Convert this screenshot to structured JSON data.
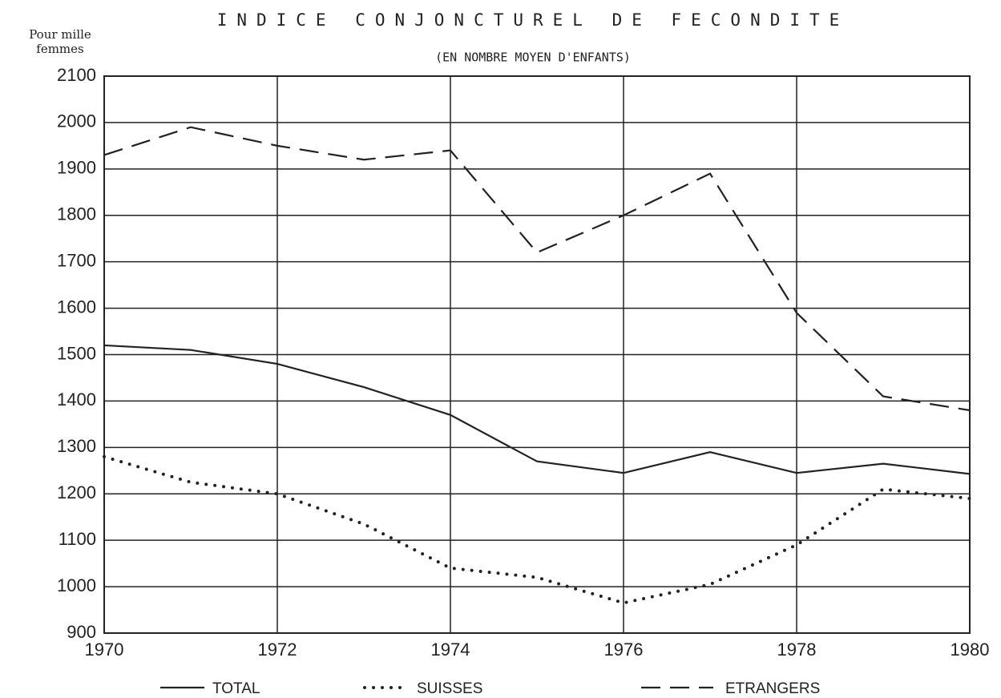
{
  "chart_data": {
    "type": "line",
    "title": "INDICE CONJONCTUREL DE FECONDITE",
    "subtitle": "(EN NOMBRE MOYEN D'ENFANTS)",
    "ylabel": [
      "Pour mille",
      "femmes"
    ],
    "x": [
      1970,
      1971,
      1972,
      1973,
      1974,
      1975,
      1976,
      1977,
      1978,
      1979,
      1980
    ],
    "series": [
      {
        "name": "TOTAL",
        "color": "#222222",
        "dash": "solid",
        "values": [
          1520,
          1510,
          1480,
          1430,
          1370,
          1270,
          1245,
          1290,
          1245,
          1265,
          1243
        ]
      },
      {
        "name": "SUISSES",
        "color": "#222222",
        "dash": "dotted",
        "values": [
          1280,
          1225,
          1200,
          1135,
          1040,
          1020,
          965,
          1005,
          1090,
          1210,
          1190
        ]
      },
      {
        "name": "ETRANGERS",
        "color": "#222222",
        "dash": "dashed",
        "values": [
          1930,
          1990,
          1950,
          1920,
          1940,
          1720,
          1800,
          1890,
          1590,
          1410,
          1380
        ]
      }
    ],
    "xlim": [
      1970,
      1980
    ],
    "xticks": [
      1970,
      1972,
      1974,
      1976,
      1978,
      1980
    ],
    "ylim": [
      900,
      2100
    ],
    "yticks": [
      900,
      1000,
      1100,
      1200,
      1300,
      1400,
      1500,
      1600,
      1700,
      1800,
      1900,
      2000,
      2100
    ],
    "grid": true,
    "legend": "bottom"
  }
}
